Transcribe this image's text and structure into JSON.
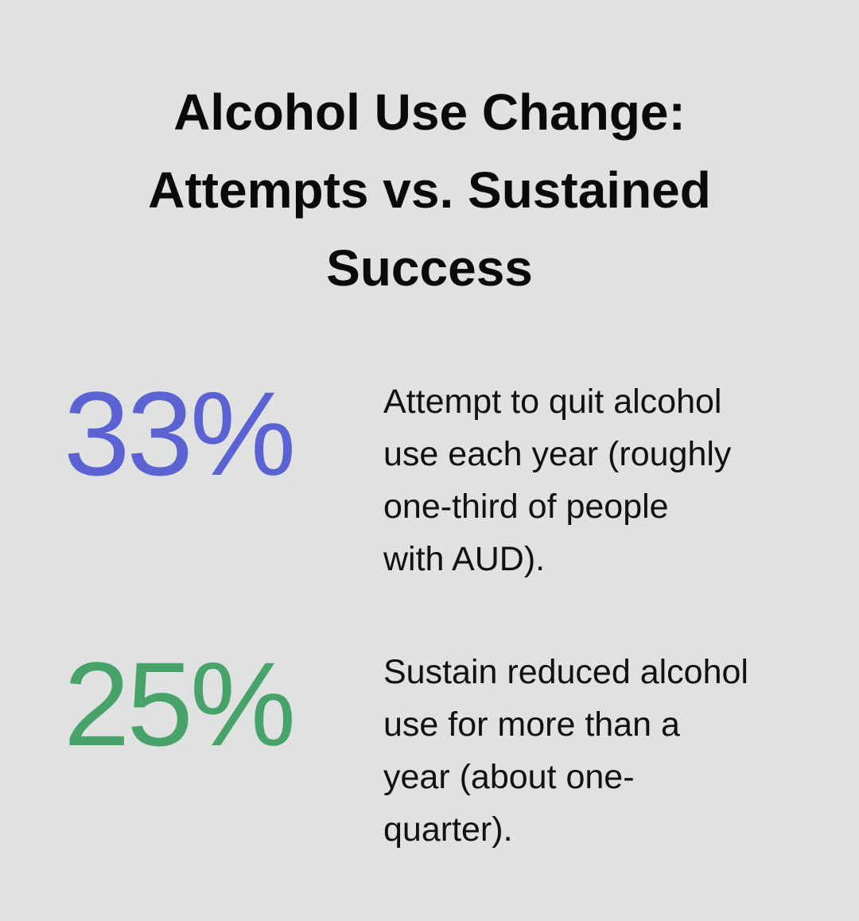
{
  "title_lines": [
    "Alcohol Use Change:",
    "Attempts vs. Sustained",
    "Success"
  ],
  "stats": [
    {
      "value": "33%",
      "color": "#5b63d3",
      "description_lines": [
        "Attempt to quit alcohol",
        "use each year (roughly",
        "one-third of people",
        "with AUD)."
      ]
    },
    {
      "value": "25%",
      "color": "#48a36a",
      "description_lines": [
        "Sustain reduced alcohol",
        "use for more than a",
        "year (about one-",
        "quarter)."
      ]
    }
  ]
}
